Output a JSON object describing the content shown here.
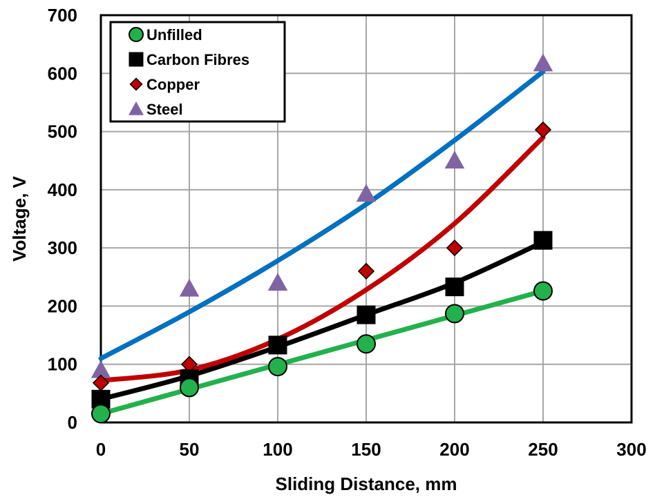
{
  "chart_data": {
    "type": "scatter",
    "title": "",
    "xlabel": "Sliding Distance, mm",
    "ylabel": "Voltage, V",
    "xlim": [
      0,
      300
    ],
    "ylim": [
      0,
      700
    ],
    "xticks": [
      "0",
      "50",
      "100",
      "150",
      "200",
      "250",
      "300"
    ],
    "yticks": [
      "0",
      "100",
      "200",
      "300",
      "400",
      "500",
      "600",
      "700"
    ],
    "grid": true,
    "legend_position": "top-left",
    "series": [
      {
        "name": "Unfilled",
        "marker": "circle",
        "color": "#22b14c",
        "x": [
          0,
          50,
          100,
          150,
          200,
          250
        ],
        "y": [
          15,
          60,
          96,
          135,
          187,
          226
        ],
        "trend": {
          "color": "#22b14c",
          "x": [
            0,
            250
          ],
          "y": [
            15,
            226
          ]
        }
      },
      {
        "name": "Carbon Fibres",
        "marker": "square",
        "color": "#000000",
        "x": [
          0,
          50,
          100,
          150,
          200,
          250
        ],
        "y": [
          40,
          75,
          133,
          185,
          233,
          313
        ],
        "trend": {
          "color": "#000000",
          "x": [
            0,
            50,
            100,
            150,
            200,
            250
          ],
          "y": [
            40,
            80,
            130,
            185,
            240,
            310
          ]
        }
      },
      {
        "name": "Copper",
        "marker": "diamond",
        "color": "#c00000",
        "x": [
          0,
          50,
          100,
          150,
          200,
          250
        ],
        "y": [
          68,
          100,
          135,
          260,
          300,
          503
        ],
        "trend": {
          "color": "#c00000",
          "x": [
            0,
            50,
            100,
            150,
            200,
            250
          ],
          "y": [
            72,
            90,
            143,
            228,
            342,
            490
          ]
        }
      },
      {
        "name": "Steel",
        "marker": "triangle",
        "color": "#8064a2",
        "x": [
          0,
          50,
          100,
          150,
          200,
          250
        ],
        "y": [
          90,
          230,
          240,
          393,
          450,
          617
        ],
        "trend": {
          "color": "#0070c0",
          "x": [
            0,
            50,
            100,
            150,
            200,
            250
          ],
          "y": [
            110,
            190,
            278,
            375,
            485,
            603
          ]
        }
      }
    ]
  }
}
